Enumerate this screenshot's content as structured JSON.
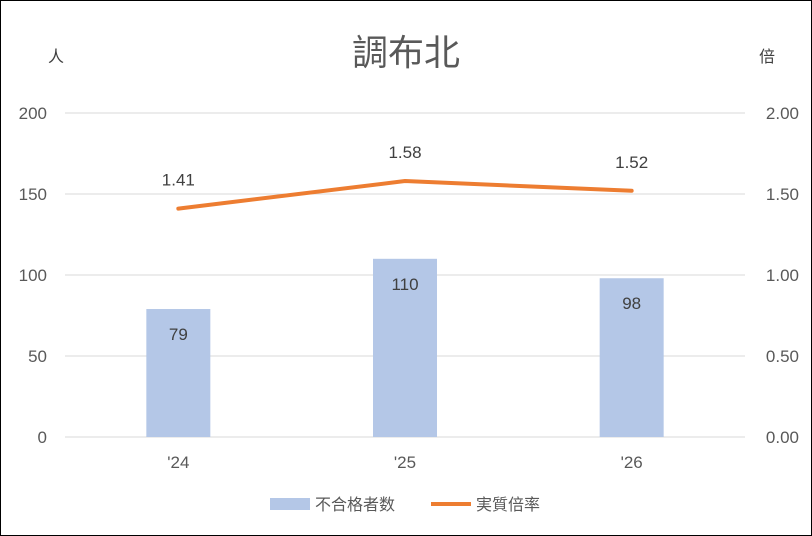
{
  "chart_data": {
    "type": "bar",
    "title": "調布北",
    "left_axis_unit": "人",
    "right_axis_unit": "倍",
    "categories": [
      "'24",
      "'25",
      "'26"
    ],
    "left_ylim": [
      0,
      200
    ],
    "left_ticks": [
      "0",
      "50",
      "100",
      "150",
      "200"
    ],
    "right_ylim": [
      0,
      2.0
    ],
    "right_ticks": [
      "0.00",
      "0.50",
      "1.00",
      "1.50",
      "2.00"
    ],
    "grid": true,
    "legend_position": "bottom",
    "series": [
      {
        "name": "不合格者数",
        "type": "bar",
        "axis": "left",
        "color": "#b4c7e7",
        "values": [
          79,
          110,
          98
        ],
        "labels": [
          "79",
          "110",
          "98"
        ]
      },
      {
        "name": "実質倍率",
        "type": "line",
        "axis": "right",
        "color": "#ed7d31",
        "values": [
          1.41,
          1.58,
          1.52
        ],
        "labels": [
          "1.41",
          "1.58",
          "1.52"
        ]
      }
    ]
  }
}
